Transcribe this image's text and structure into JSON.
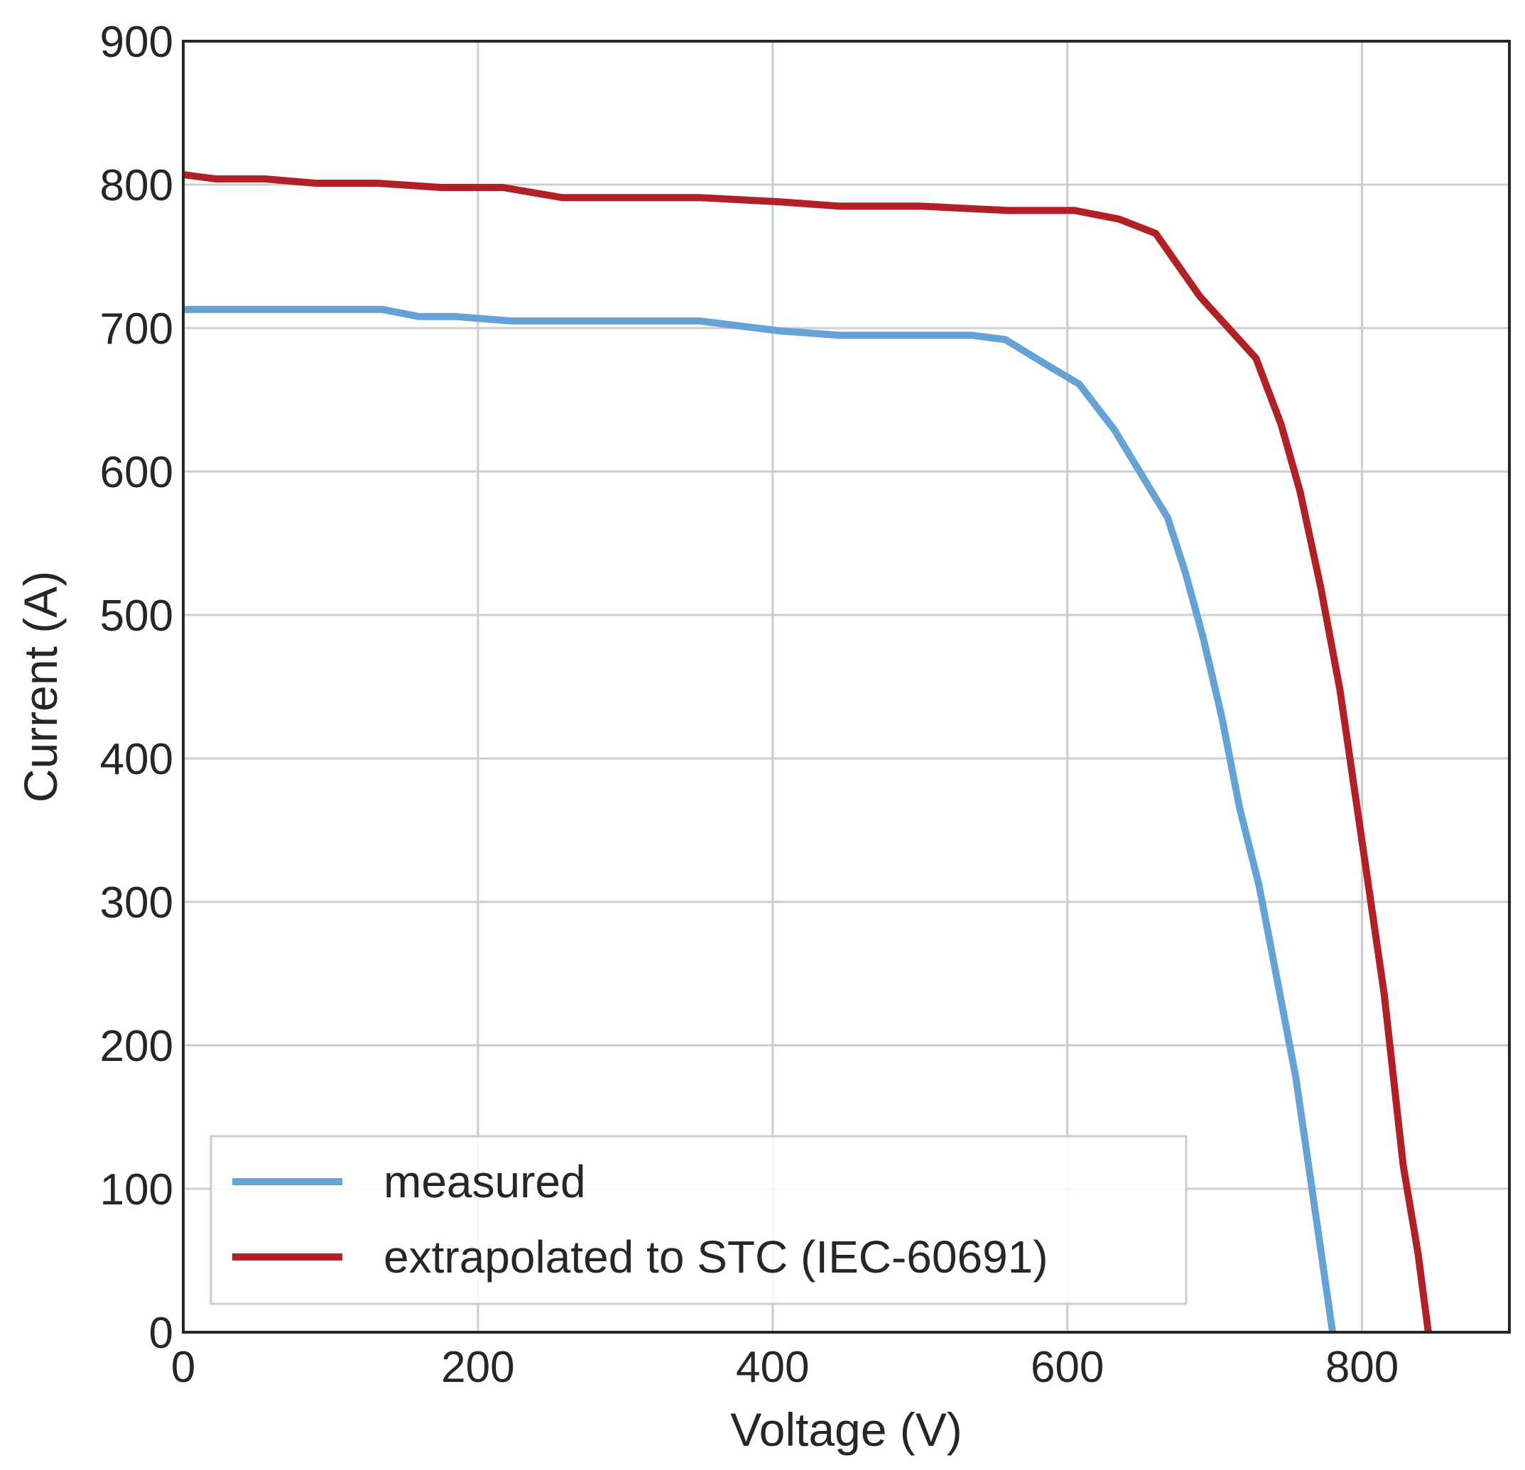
{
  "chart_data": {
    "type": "line",
    "title": "",
    "xlabel": "Voltage (V)",
    "ylabel": "Current (A)",
    "xlim": [
      0,
      900
    ],
    "ylim": [
      0,
      900
    ],
    "xticks": [
      0,
      200,
      400,
      600,
      800
    ],
    "yticks": [
      0,
      100,
      200,
      300,
      400,
      500,
      600,
      700,
      800,
      900
    ],
    "grid": true,
    "legend_position": "bottom-left",
    "series": [
      {
        "name": "measured",
        "color": "#65a3d7",
        "x": [
          0,
          135,
          160,
          185,
          222,
          350,
          405,
          445,
          535,
          558,
          585,
          608,
          632,
          652,
          668,
          680,
          692,
          705,
          717,
          730,
          742,
          755,
          767,
          780
        ],
        "y": [
          713,
          713,
          708,
          708,
          705,
          705,
          698,
          695,
          695,
          692,
          675,
          661,
          629,
          595,
          568,
          530,
          485,
          428,
          365,
          312,
          248,
          178,
          93,
          0
        ]
      },
      {
        "name": "extrapolated to STC (IEC-60691)",
        "color": "#b21f24",
        "x": [
          0,
          22,
          55,
          90,
          132,
          175,
          217,
          257,
          350,
          405,
          445,
          500,
          560,
          605,
          635,
          660,
          690,
          728,
          745,
          758,
          772,
          785,
          800,
          815,
          828,
          838,
          845
        ],
        "y": [
          807,
          804,
          804,
          801,
          801,
          798,
          798,
          791,
          791,
          788,
          785,
          785,
          782,
          782,
          776,
          766,
          722,
          679,
          633,
          586,
          519,
          448,
          342,
          236,
          116,
          55,
          0
        ]
      }
    ]
  }
}
